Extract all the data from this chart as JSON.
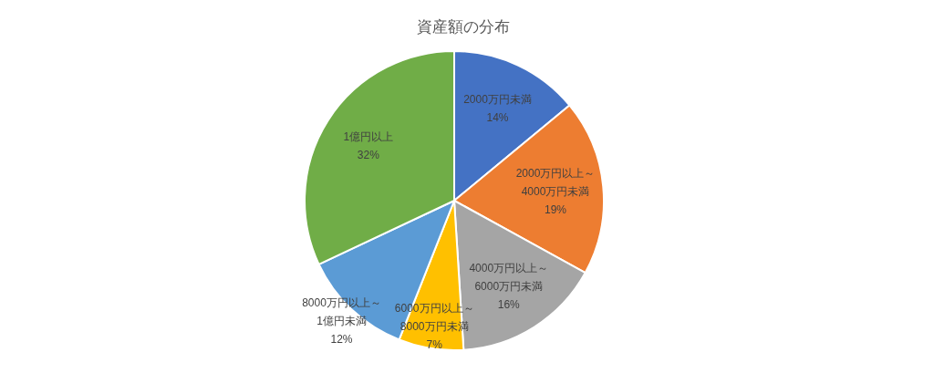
{
  "chart_data": {
    "type": "pie",
    "title": "資産額の分布",
    "categories": [
      "2000万円未満",
      "2000万円以上～4000万円未満",
      "4000万円以上～6000万円未満",
      "6000万円以上～8000万円未満",
      "8000万円以上～1億円未満",
      "1億円以上"
    ],
    "values": [
      14,
      19,
      16,
      7,
      12,
      32
    ],
    "colors": [
      "#4472c4",
      "#ed7d31",
      "#a5a5a5",
      "#ffc000",
      "#5b9bd5",
      "#70ad47"
    ],
    "value_labels": [
      "14%",
      "19%",
      "16%",
      "7%",
      "12%",
      "32%"
    ],
    "legend": false
  }
}
